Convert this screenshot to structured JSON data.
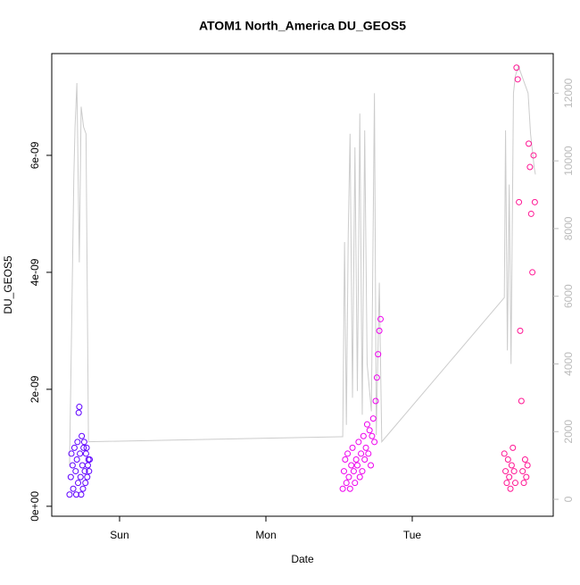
{
  "chart_data": {
    "type": "scatter",
    "title": "ATOM1 North_America DU_GEOS5",
    "x_label": "Date",
    "y_label": "DU_GEOS5",
    "xlim": [
      -11.12,
      71.12
    ],
    "xticks": [
      {
        "value": 0,
        "label": "Sun"
      },
      {
        "value": 24,
        "label": "Mon"
      },
      {
        "value": 48,
        "label": "Tue"
      }
    ],
    "ylim": [
      -1.7e-10,
      7.74e-09
    ],
    "yticks": [
      {
        "value": 0,
        "label": "0e+00"
      },
      {
        "value": 2e-09,
        "label": "2e-09"
      },
      {
        "value": 4e-09,
        "label": "4e-09"
      },
      {
        "value": 6e-09,
        "label": "6e-09"
      }
    ],
    "y2lim": [
      -500,
      13170
    ],
    "y2ticks": [
      0,
      2000,
      4000,
      6000,
      8000,
      10000,
      12000
    ],
    "y2_color": "#bbbbbb",
    "series": [
      {
        "color": "#5f00ff",
        "x": [
          -8.2,
          -8.0,
          -7.9,
          -7.7,
          -7.6,
          -7.4,
          -7.2,
          -7.1,
          -7.0,
          -6.9,
          -6.8,
          -6.7,
          -6.6,
          -6.5,
          -6.4,
          -6.3,
          -6.2,
          -6.1,
          -6.0,
          -5.9,
          -5.8,
          -5.7,
          -5.6,
          -5.5,
          -5.4,
          -5.3,
          -5.2,
          -5.1,
          -5.0,
          -4.9
        ],
        "values": [
          2e-10,
          5e-10,
          9e-10,
          7e-10,
          3e-10,
          1e-09,
          6e-10,
          2e-10,
          8e-10,
          1.1e-09,
          4e-10,
          1.6e-09,
          1.7e-09,
          9e-10,
          5e-10,
          2e-10,
          1.2e-09,
          7e-10,
          3e-10,
          1e-09,
          1.1e-09,
          6e-10,
          4e-10,
          9e-10,
          1e-09,
          5e-10,
          7e-10,
          8e-10,
          6e-10,
          8e-10
        ]
      },
      {
        "color": "#ee00ee",
        "x": [
          36.6,
          36.8,
          37.0,
          37.2,
          37.4,
          37.6,
          37.8,
          38.0,
          38.2,
          38.4,
          38.6,
          38.8,
          39.0,
          39.2,
          39.4,
          39.6,
          39.8,
          40.0,
          40.2,
          40.4,
          40.6,
          40.8,
          41.0,
          41.2,
          41.4,
          41.6,
          41.8,
          42.0,
          42.2,
          42.4,
          42.6,
          42.8
        ],
        "values": [
          3e-10,
          6e-10,
          8e-10,
          4e-10,
          9e-10,
          5e-10,
          3e-10,
          7e-10,
          1e-09,
          6e-10,
          4e-10,
          8e-10,
          7e-10,
          1.1e-09,
          5e-10,
          9e-10,
          6e-10,
          1.2e-09,
          8e-10,
          1e-09,
          1.4e-09,
          9e-10,
          1.3e-09,
          7e-10,
          1.2e-09,
          1.5e-09,
          1.1e-09,
          1.8e-09,
          2.2e-09,
          2.6e-09,
          3e-09,
          3.2e-09
        ]
      },
      {
        "color": "#ff1493",
        "x": [
          63.1,
          63.3,
          63.5,
          63.7,
          63.9,
          64.1,
          64.3,
          64.5,
          64.7,
          64.9,
          65.1,
          65.3,
          65.5,
          65.7,
          65.9,
          66.1,
          66.3,
          66.5,
          66.7,
          66.9,
          67.1,
          67.3,
          67.5,
          67.7,
          67.9,
          68.1
        ],
        "values": [
          9e-10,
          6e-10,
          4e-10,
          8e-10,
          5e-10,
          3e-10,
          7e-10,
          1e-09,
          6e-10,
          4e-10,
          7.5e-09,
          7.3e-09,
          5.2e-09,
          3e-09,
          1.8e-09,
          6e-10,
          4e-10,
          8e-10,
          5e-10,
          7e-10,
          6.2e-09,
          5.8e-09,
          5e-09,
          4e-09,
          6e-09,
          5.2e-09
        ]
      },
      {
        "type": "line",
        "axis": "y2",
        "color": "#cccccc",
        "x": [
          -8.2,
          -7.5,
          -7.3,
          -7.0,
          -6.6,
          -6.3,
          -5.9,
          -5.5,
          -5.1,
          36.6,
          36.9,
          37.2,
          37.5,
          37.8,
          38.2,
          38.6,
          39.0,
          39.4,
          39.8,
          40.2,
          40.6,
          41.3,
          41.8,
          42.1,
          42.6,
          43.0,
          63.1,
          63.3,
          63.6,
          63.9,
          64.2,
          64.6,
          64.9,
          65.4,
          67.0,
          67.4,
          68.0,
          68.2
        ],
        "values": [
          1000,
          9500,
          11000,
          12300,
          7000,
          11600,
          11000,
          10800,
          1700,
          1850,
          7600,
          2200,
          7800,
          10800,
          3000,
          10400,
          3200,
          11400,
          2500,
          10900,
          4000,
          2600,
          12000,
          1900,
          6400,
          1700,
          5960,
          10900,
          4400,
          9300,
          4000,
          12000,
          12500,
          12800,
          12000,
          10800,
          9800,
          9600
        ]
      }
    ]
  }
}
